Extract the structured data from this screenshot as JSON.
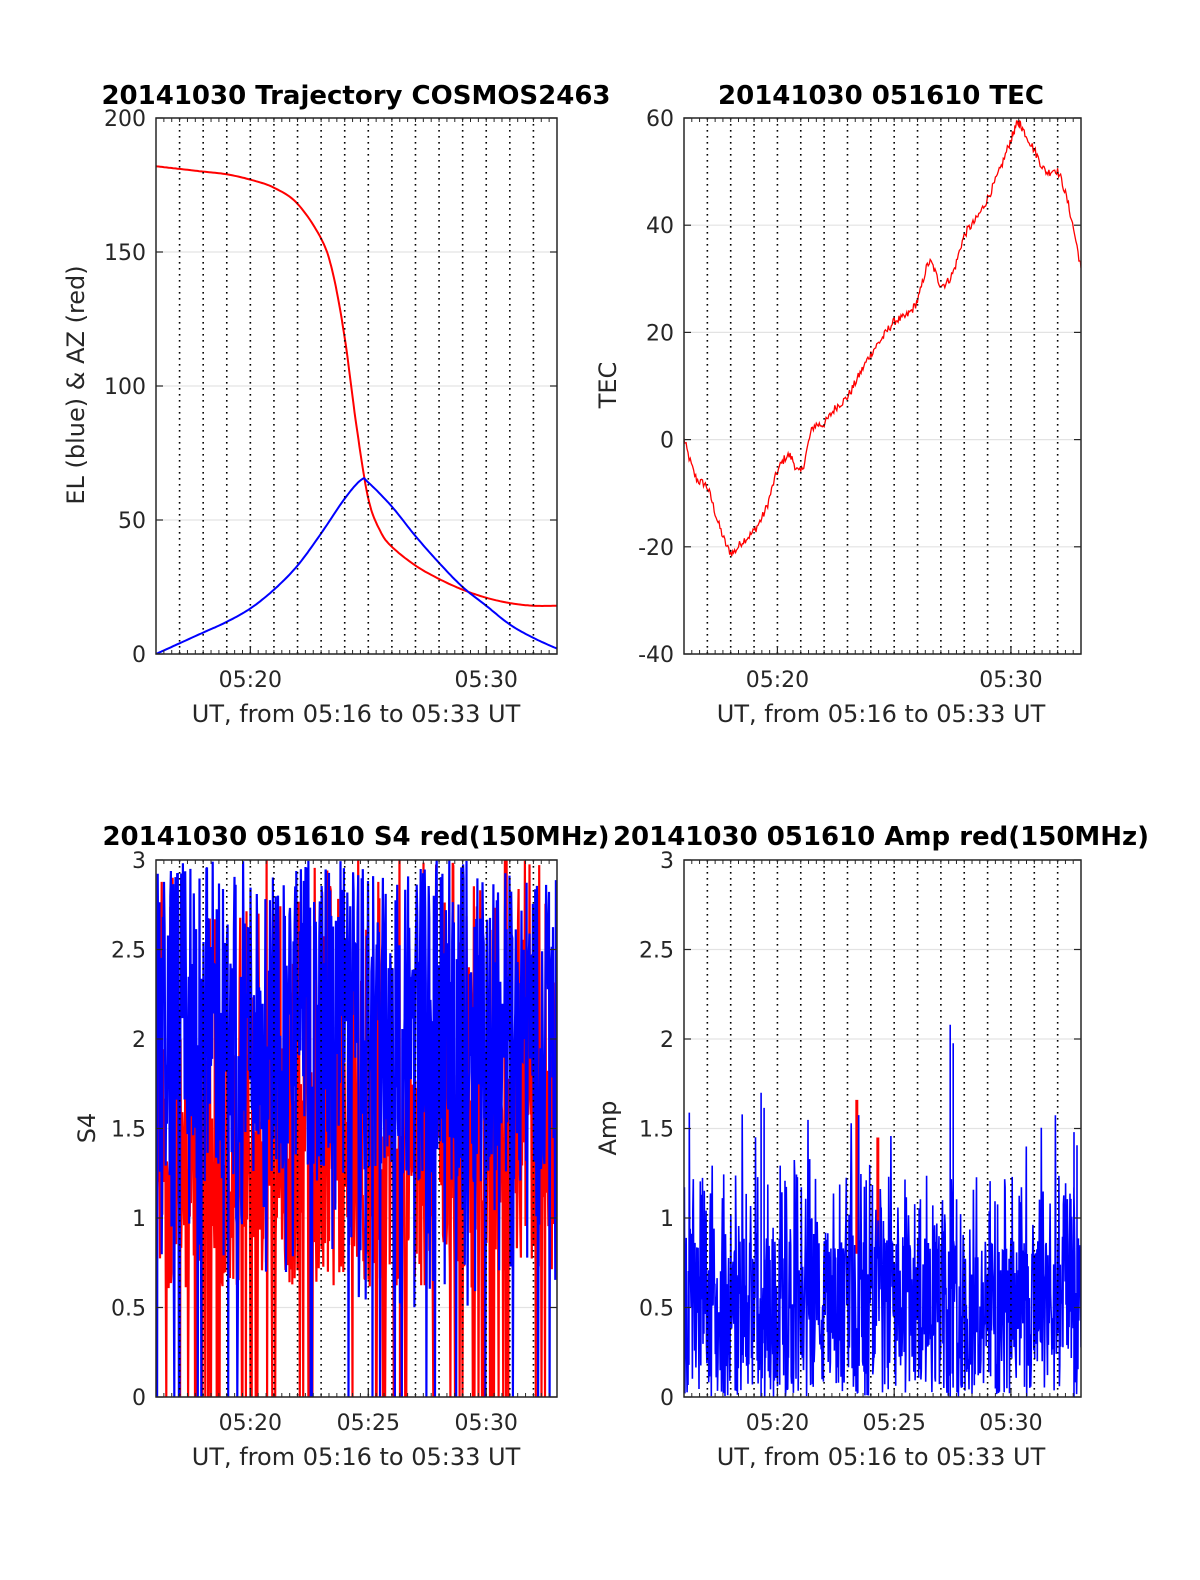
{
  "chart_data": [
    {
      "type": "line",
      "title": "20141030 Trajectory COSMOS2463",
      "xlabel": "UT, from 05:16 to 05:33 UT",
      "ylabel": "EL (blue) & AZ (red)",
      "xlim": [
        "05:16",
        "05:33"
      ],
      "ylim": [
        0,
        200
      ],
      "xticks": [
        "05:20",
        "05:30"
      ],
      "yticks": [
        "0",
        "50",
        "100",
        "150",
        "200"
      ],
      "grid": "dotted vertical every 1 min, horizontal at y ticks",
      "colors": {
        "EL": "#0000ff",
        "AZ": "#ff0000"
      },
      "series": [
        {
          "color": "#ff0000",
          "x": [
            "05:16",
            "05:17",
            "05:18",
            "05:19",
            "05:20",
            "05:21",
            "05:22",
            "05:23",
            "05:23.5",
            "05:24",
            "05:24.5",
            "05:25",
            "05:25.5",
            "05:26",
            "05:27",
            "05:28",
            "05:29",
            "05:30",
            "05:31",
            "05:32",
            "05:33"
          ],
          "y": [
            182,
            181,
            180,
            179,
            177,
            174,
            168,
            155,
            142,
            118,
            85,
            58,
            46,
            40,
            33,
            28,
            24,
            21,
            19,
            18,
            18
          ]
        },
        {
          "color": "#0000ff",
          "x": [
            "05:16",
            "05:17",
            "05:18",
            "05:19",
            "05:20",
            "05:21",
            "05:22",
            "05:23",
            "05:24",
            "05:24.7",
            "05:25",
            "05:26",
            "05:27",
            "05:28",
            "05:29",
            "05:30",
            "05:31",
            "05:32",
            "05:33"
          ],
          "y": [
            0,
            4,
            8,
            12,
            17,
            24,
            33,
            45,
            58,
            65,
            64,
            55,
            44,
            34,
            25,
            18,
            11,
            6,
            2
          ]
        }
      ]
    },
    {
      "type": "line",
      "title": "20141030 051610 TEC",
      "xlabel": "UT, from 05:16 to 05:33 UT",
      "ylabel": "TEC",
      "xlim": [
        "05:16",
        "05:33"
      ],
      "ylim": [
        -40,
        60
      ],
      "xticks": [
        "05:20",
        "05:30"
      ],
      "yticks": [
        "-40",
        "-20",
        "0",
        "20",
        "40",
        "60"
      ],
      "grid": "dotted vertical every 1 min, horizontal at y ticks",
      "colors": {
        "TEC": "#ff0000"
      },
      "series": [
        {
          "color": "#ff0000",
          "x": [
            "05:16",
            "05:16.5",
            "05:17",
            "05:17.5",
            "05:18",
            "05:18.5",
            "05:19",
            "05:19.5",
            "05:20",
            "05:20.5",
            "05:21",
            "05:21.5",
            "05:22",
            "05:22.5",
            "05:23",
            "05:23.5",
            "05:24",
            "05:24.5",
            "05:25",
            "05:25.5",
            "05:26",
            "05:26.5",
            "05:27",
            "05:27.5",
            "05:28",
            "05:28.5",
            "05:29",
            "05:29.5",
            "05:30",
            "05:30.3",
            "05:30.5",
            "05:31",
            "05:31.5",
            "05:32",
            "05:32.5",
            "05:33"
          ],
          "y": [
            0,
            -7,
            -9,
            -16,
            -21,
            -19,
            -17,
            -13,
            -6,
            -3,
            -6,
            2,
            3,
            6,
            8,
            12,
            16,
            19,
            22,
            23,
            26,
            33,
            29,
            31,
            38,
            41,
            45,
            50,
            56,
            59,
            58,
            54,
            50,
            50,
            43,
            32
          ]
        }
      ]
    },
    {
      "type": "line",
      "title": "20141030 051610 S4 red(150MHz)",
      "xlabel": "UT, from 05:16 to 05:33 UT",
      "ylabel": "S4",
      "xlim": [
        "05:16",
        "05:33"
      ],
      "ylim": [
        0,
        3
      ],
      "xticks": [
        "05:20",
        "05:25",
        "05:30"
      ],
      "yticks": [
        "0",
        "0.5",
        "1",
        "1.5",
        "2",
        "2.5",
        "3"
      ],
      "grid": "dotted vertical every 1 min, horizontal at y ticks",
      "colors": {
        "red": "#ff0000",
        "blue": "#0000ff"
      },
      "series": [
        {
          "color": "#ff0000",
          "range": [
            0,
            3
          ],
          "typical": 1.2
        },
        {
          "color": "#0000ff",
          "range": [
            1.0,
            3
          ],
          "typical": 2.1
        }
      ]
    },
    {
      "type": "line",
      "title": "20141030 051610 Amp red(150MHz)",
      "xlabel": "UT, from 05:16 to 05:33 UT",
      "ylabel": "Amp",
      "xlim": [
        "05:16",
        "05:33"
      ],
      "ylim": [
        0,
        3
      ],
      "xticks": [
        "05:20",
        "05:25",
        "05:30"
      ],
      "yticks": [
        "0",
        "0.5",
        "1",
        "1.5",
        "2",
        "2.5",
        "3"
      ],
      "grid": "dotted vertical every 1 min, horizontal at y ticks",
      "colors": {
        "red": "#ff0000",
        "blue": "#0000ff"
      },
      "series": [
        {
          "color": "#0000ff",
          "typical_max": 1.0,
          "peaks": [
            {
              "x": "05:27.4",
              "y": 2.08
            },
            {
              "x": "05:19.3",
              "y": 1.7
            },
            {
              "x": "05:32.7",
              "y": 1.48
            }
          ]
        },
        {
          "color": "#ff0000",
          "peaks": [
            {
              "x": "05:23.4",
              "y": 1.66
            },
            {
              "x": "05:24.3",
              "y": 1.45
            }
          ]
        }
      ]
    }
  ]
}
